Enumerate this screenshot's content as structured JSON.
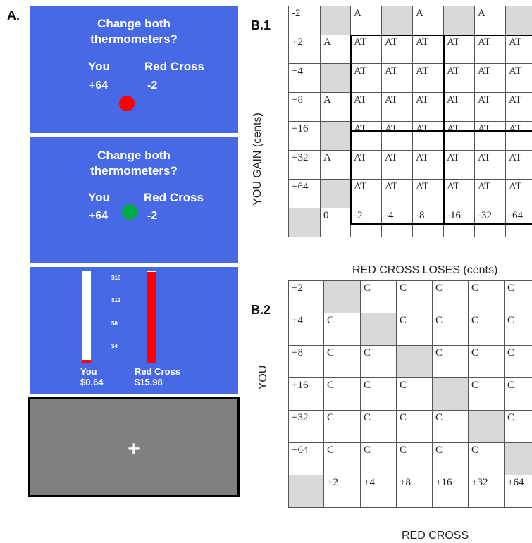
{
  "panels": {
    "a": "A.",
    "b1": "B.1",
    "b2": "B.2"
  },
  "screens": [
    {
      "question": "Change both thermometers?",
      "you_label": "You",
      "other_label": "Red Cross",
      "you_value": "+64",
      "other_value": "-2",
      "dot_color": "#ff0000"
    },
    {
      "question": "Change both thermometers?",
      "you_label": "You",
      "other_label": "Red Cross",
      "you_value": "+64",
      "other_value": "-2",
      "dot_color": "#00aa44"
    }
  ],
  "thermometers": {
    "ticks": [
      "$16",
      "$12",
      "$8",
      "$4"
    ],
    "you_label": "You",
    "you_amount": "$0.64",
    "you_fraction": 0.04,
    "other_label": "Red Cross",
    "other_amount": "$15.98",
    "other_fraction": 0.99
  },
  "fixation": {
    "symbol": "+"
  },
  "b1": {
    "ylabel": "YOU GAIN (cents)",
    "xlabel": "RED CROSS LOSES (cents)",
    "rows": [
      [
        "-2",
        "",
        "A",
        "",
        "A",
        "",
        "A",
        ""
      ],
      [
        "+2",
        "A",
        "AT",
        "AT",
        "AT",
        "AT",
        "AT",
        "AT"
      ],
      [
        "+4",
        "",
        "AT",
        "AT",
        "AT",
        "AT",
        "AT",
        "AT"
      ],
      [
        "+8",
        "A",
        "AT",
        "AT",
        "AT",
        "AT",
        "AT",
        "AT"
      ],
      [
        "+16",
        "",
        "AT",
        "AT",
        "AT",
        "AT",
        "AT",
        "AT"
      ],
      [
        "+32",
        "A",
        "AT",
        "AT",
        "AT",
        "AT",
        "AT",
        "AT"
      ],
      [
        "+64",
        "",
        "AT",
        "AT",
        "AT",
        "AT",
        "AT",
        "AT"
      ],
      [
        "",
        "0",
        "-2",
        "-4",
        "-8",
        "-16",
        "-32",
        "-64"
      ]
    ],
    "grey": [
      [
        0,
        1
      ],
      [
        0,
        3
      ],
      [
        0,
        5
      ],
      [
        0,
        7
      ],
      [
        2,
        1
      ],
      [
        4,
        1
      ],
      [
        6,
        1
      ],
      [
        7,
        0
      ]
    ]
  },
  "b2": {
    "ylabel": "YOU",
    "xlabel": "RED CROSS",
    "rows": [
      [
        "+2",
        "",
        "C",
        "C",
        "C",
        "C",
        "C"
      ],
      [
        "+4",
        "C",
        "",
        "C",
        "C",
        "C",
        "C"
      ],
      [
        "+8",
        "C",
        "C",
        "",
        "C",
        "C",
        "C"
      ],
      [
        "+16",
        "C",
        "C",
        "C",
        "",
        "C",
        "C"
      ],
      [
        "+32",
        "C",
        "C",
        "C",
        "C",
        "",
        "C"
      ],
      [
        "+64",
        "C",
        "C",
        "C",
        "C",
        "C",
        ""
      ],
      [
        "",
        "+2",
        "+4",
        "+8",
        "+16",
        "+32",
        "+64"
      ]
    ],
    "grey": [
      [
        0,
        1
      ],
      [
        1,
        2
      ],
      [
        2,
        3
      ],
      [
        3,
        4
      ],
      [
        4,
        5
      ],
      [
        5,
        6
      ],
      [
        6,
        0
      ]
    ]
  }
}
